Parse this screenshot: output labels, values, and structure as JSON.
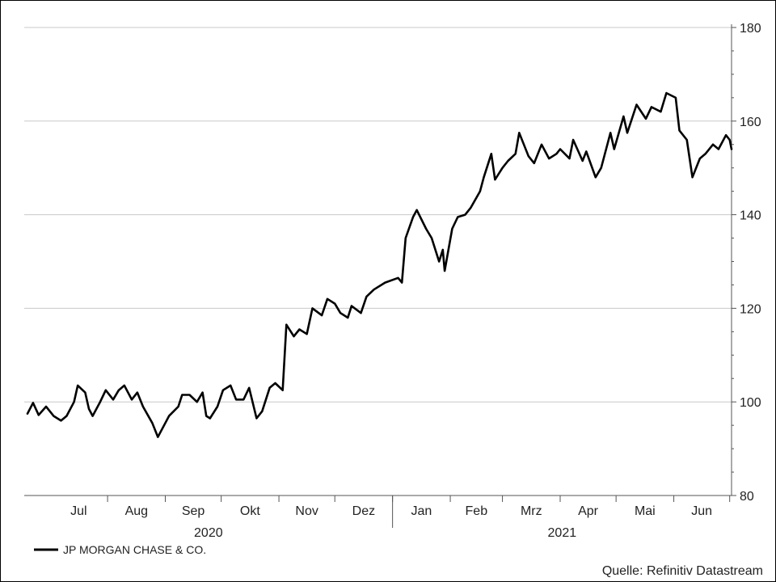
{
  "chart_data": {
    "type": "line",
    "title": "",
    "xlabel": "",
    "ylabel": "",
    "ylim": [
      80,
      180
    ],
    "y_ticks": [
      80,
      100,
      120,
      140,
      160,
      180
    ],
    "y_axis_side": "right",
    "grid": "horizontal",
    "months": [
      "Jul",
      "Aug",
      "Sep",
      "Okt",
      "Nov",
      "Dez",
      "Jan",
      "Feb",
      "Mrz",
      "Apr",
      "Mai",
      "Jun"
    ],
    "years": [
      "2020",
      "2021"
    ],
    "legend": {
      "placement": "bottom-left",
      "entries": [
        "JP MORGAN CHASE & CO."
      ]
    },
    "source": "Quelle: Refinitiv Datastream",
    "series": [
      {
        "name": "JP MORGAN CHASE & CO.",
        "color": "#000000",
        "x": [
          "2020-06-19",
          "2020-06-22",
          "2020-06-25",
          "2020-06-29",
          "2020-07-01",
          "2020-07-03",
          "2020-07-07",
          "2020-07-10",
          "2020-07-14",
          "2020-07-16",
          "2020-07-20",
          "2020-07-22",
          "2020-07-24",
          "2020-07-28",
          "2020-07-31",
          "2020-08-04",
          "2020-08-07",
          "2020-08-10",
          "2020-08-14",
          "2020-08-17",
          "2020-08-20",
          "2020-08-25",
          "2020-08-28",
          "2020-09-01",
          "2020-09-03",
          "2020-09-08",
          "2020-09-10",
          "2020-09-14",
          "2020-09-18",
          "2020-09-21",
          "2020-09-23",
          "2020-09-25",
          "2020-09-29",
          "2020-10-02",
          "2020-10-06",
          "2020-10-09",
          "2020-10-13",
          "2020-10-16",
          "2020-10-20",
          "2020-10-23",
          "2020-10-27",
          "2020-10-30",
          "2020-11-03",
          "2020-11-05",
          "2020-11-09",
          "2020-11-12",
          "2020-11-16",
          "2020-11-19",
          "2020-11-24",
          "2020-11-27",
          "2020-12-01",
          "2020-12-04",
          "2020-12-08",
          "2020-12-10",
          "2020-12-15",
          "2020-12-18",
          "2020-12-22",
          "2020-12-28",
          "2021-01-04",
          "2021-01-06",
          "2021-01-08",
          "2021-01-12",
          "2021-01-14",
          "2021-01-19",
          "2021-01-22",
          "2021-01-26",
          "2021-01-28",
          "2021-01-29",
          "2021-02-02",
          "2021-02-05",
          "2021-02-09",
          "2021-02-12",
          "2021-02-17",
          "2021-02-19",
          "2021-02-23",
          "2021-02-25",
          "2021-03-01",
          "2021-03-04",
          "2021-03-08",
          "2021-03-10",
          "2021-03-15",
          "2021-03-18",
          "2021-03-22",
          "2021-03-26",
          "2021-03-30",
          "2021-04-01",
          "2021-04-06",
          "2021-04-08",
          "2021-04-13",
          "2021-04-15",
          "2021-04-20",
          "2021-04-23",
          "2021-04-28",
          "2021-04-30",
          "2021-05-05",
          "2021-05-07",
          "2021-05-12",
          "2021-05-17",
          "2021-05-20",
          "2021-05-25",
          "2021-05-28",
          "2021-06-02",
          "2021-06-04",
          "2021-06-08",
          "2021-06-11",
          "2021-06-15",
          "2021-06-18",
          "2021-06-22",
          "2021-06-25",
          "2021-06-29",
          "2021-07-01",
          "2021-07-02"
        ],
        "values": [
          97.5,
          99.8,
          97.2,
          99,
          98,
          97,
          96,
          97,
          100,
          103.5,
          102,
          98.5,
          97,
          100,
          102.5,
          100.5,
          102.5,
          103.5,
          100.5,
          102,
          99,
          95.5,
          92.5,
          95.5,
          97,
          99,
          101.5,
          101.5,
          100,
          102,
          97,
          96.5,
          99,
          102.5,
          103.5,
          100.5,
          100.5,
          103,
          96.5,
          98,
          103,
          104,
          102.5,
          116.5,
          114,
          115.5,
          114.5,
          120,
          118.5,
          122,
          121,
          119,
          118,
          120.5,
          119,
          122.5,
          124,
          125.5,
          126.5,
          125.5,
          135,
          139.5,
          141,
          137,
          135,
          130,
          132.5,
          128,
          137,
          139.5,
          140,
          141.5,
          145,
          148,
          153,
          147.5,
          150,
          151.5,
          153,
          157.5,
          152.5,
          151,
          155,
          152,
          153,
          154,
          152,
          156,
          151.5,
          153.5,
          148,
          150,
          157.5,
          154,
          161,
          157.5,
          163.5,
          160.5,
          163,
          162,
          166,
          165,
          158,
          156,
          148,
          152,
          153,
          155,
          154,
          157,
          156,
          154
        ]
      }
    ]
  }
}
